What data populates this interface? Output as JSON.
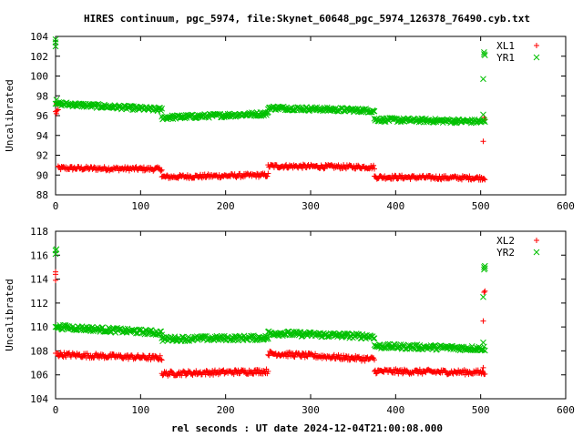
{
  "title": "HIRES continuum, pgc_5974, file:Skynet_60648_pgc_5974_126378_76490.cyb.txt",
  "xlabel": "rel seconds : UT date 2024-12-04T21:00:08.000",
  "colors": {
    "red": "#ff0000",
    "green": "#00c000"
  },
  "chart_data": [
    {
      "type": "scatter",
      "ylabel": "Uncalibrated",
      "xlim": [
        0,
        600
      ],
      "ylim": [
        88,
        104
      ],
      "xticks": [
        0,
        100,
        200,
        300,
        400,
        500,
        600
      ],
      "yticks": [
        88,
        90,
        92,
        94,
        96,
        98,
        100,
        102,
        104
      ],
      "legend_position": "top-right",
      "grid": false,
      "series": [
        {
          "name": "XL1",
          "marker": "plus",
          "color": "#ff0000",
          "segments": [
            {
              "x": [
                0,
                3
              ],
              "y": [
                96.4,
                96.6
              ],
              "noise": 0.0
            },
            {
              "x": [
                3,
                125
              ],
              "y": [
                90.7,
                90.6
              ],
              "noise": 0.2
            },
            {
              "x": [
                125,
                250
              ],
              "y": [
                89.8,
                90.0
              ],
              "noise": 0.2
            },
            {
              "x": [
                250,
                375
              ],
              "y": [
                90.9,
                90.8
              ],
              "noise": 0.2
            },
            {
              "x": [
                375,
                505
              ],
              "y": [
                89.8,
                89.7
              ],
              "noise": 0.2
            }
          ],
          "outliers": [
            [
              1,
              97.2
            ],
            [
              1,
              96.2
            ],
            [
              503,
              93.4
            ],
            [
              505,
              95.6
            ],
            [
              504,
              95.8
            ]
          ]
        },
        {
          "name": "YR1",
          "marker": "cross",
          "color": "#00c000",
          "segments": [
            {
              "x": [
                0,
                3
              ],
              "y": [
                97.2,
                97.2
              ],
              "noise": 0.0
            },
            {
              "x": [
                3,
                125
              ],
              "y": [
                97.2,
                96.6
              ],
              "noise": 0.2
            },
            {
              "x": [
                125,
                250
              ],
              "y": [
                95.8,
                96.2
              ],
              "noise": 0.2
            },
            {
              "x": [
                250,
                375
              ],
              "y": [
                96.8,
                96.5
              ],
              "noise": 0.2
            },
            {
              "x": [
                375,
                505
              ],
              "y": [
                95.6,
                95.4
              ],
              "noise": 0.2
            }
          ],
          "outliers": [
            [
              0,
              103.4
            ],
            [
              0,
              103.7
            ],
            [
              0,
              103.0
            ],
            [
              1,
              97.6
            ],
            [
              503,
              96.1
            ],
            [
              503,
              99.7
            ],
            [
              504,
              102.2
            ],
            [
              505,
              102.1
            ],
            [
              504,
              102.4
            ]
          ]
        }
      ]
    },
    {
      "type": "scatter",
      "ylabel": "Uncalibrated",
      "xlim": [
        0,
        600
      ],
      "ylim": [
        104,
        118
      ],
      "xticks": [
        0,
        100,
        200,
        300,
        400,
        500,
        600
      ],
      "yticks": [
        104,
        106,
        108,
        110,
        112,
        114,
        116,
        118
      ],
      "legend_position": "top-right",
      "grid": false,
      "series": [
        {
          "name": "XL2",
          "marker": "plus",
          "color": "#ff0000",
          "segments": [
            {
              "x": [
                0,
                3
              ],
              "y": [
                107.8,
                107.8
              ],
              "noise": 0.0
            },
            {
              "x": [
                3,
                125
              ],
              "y": [
                107.7,
                107.4
              ],
              "noise": 0.2
            },
            {
              "x": [
                125,
                250
              ],
              "y": [
                106.1,
                106.3
              ],
              "noise": 0.2
            },
            {
              "x": [
                250,
                375
              ],
              "y": [
                107.8,
                107.3
              ],
              "noise": 0.2
            },
            {
              "x": [
                375,
                505
              ],
              "y": [
                106.3,
                106.2
              ],
              "noise": 0.2
            }
          ],
          "outliers": [
            [
              0,
              114.4
            ],
            [
              0,
              114.6
            ],
            [
              0,
              113.9
            ],
            [
              503,
              106.6
            ],
            [
              503,
              110.5
            ],
            [
              504,
              112.9
            ],
            [
              505,
              113.0
            ]
          ]
        },
        {
          "name": "YR2",
          "marker": "cross",
          "color": "#00c000",
          "segments": [
            {
              "x": [
                0,
                3
              ],
              "y": [
                110.0,
                110.0
              ],
              "noise": 0.0
            },
            {
              "x": [
                3,
                125
              ],
              "y": [
                110.0,
                109.5
              ],
              "noise": 0.2
            },
            {
              "x": [
                125,
                250
              ],
              "y": [
                109.0,
                109.1
              ],
              "noise": 0.2
            },
            {
              "x": [
                250,
                375
              ],
              "y": [
                109.5,
                109.2
              ],
              "noise": 0.2
            },
            {
              "x": [
                375,
                505
              ],
              "y": [
                108.4,
                108.2
              ],
              "noise": 0.2
            }
          ],
          "outliers": [
            [
              0,
              116.4
            ],
            [
              0,
              116.1
            ],
            [
              1,
              116.5
            ],
            [
              503,
              108.7
            ],
            [
              503,
              112.5
            ],
            [
              504,
              114.8
            ],
            [
              505,
              115.1
            ],
            [
              504,
              115.0
            ],
            [
              505,
              114.9
            ]
          ]
        }
      ]
    }
  ]
}
